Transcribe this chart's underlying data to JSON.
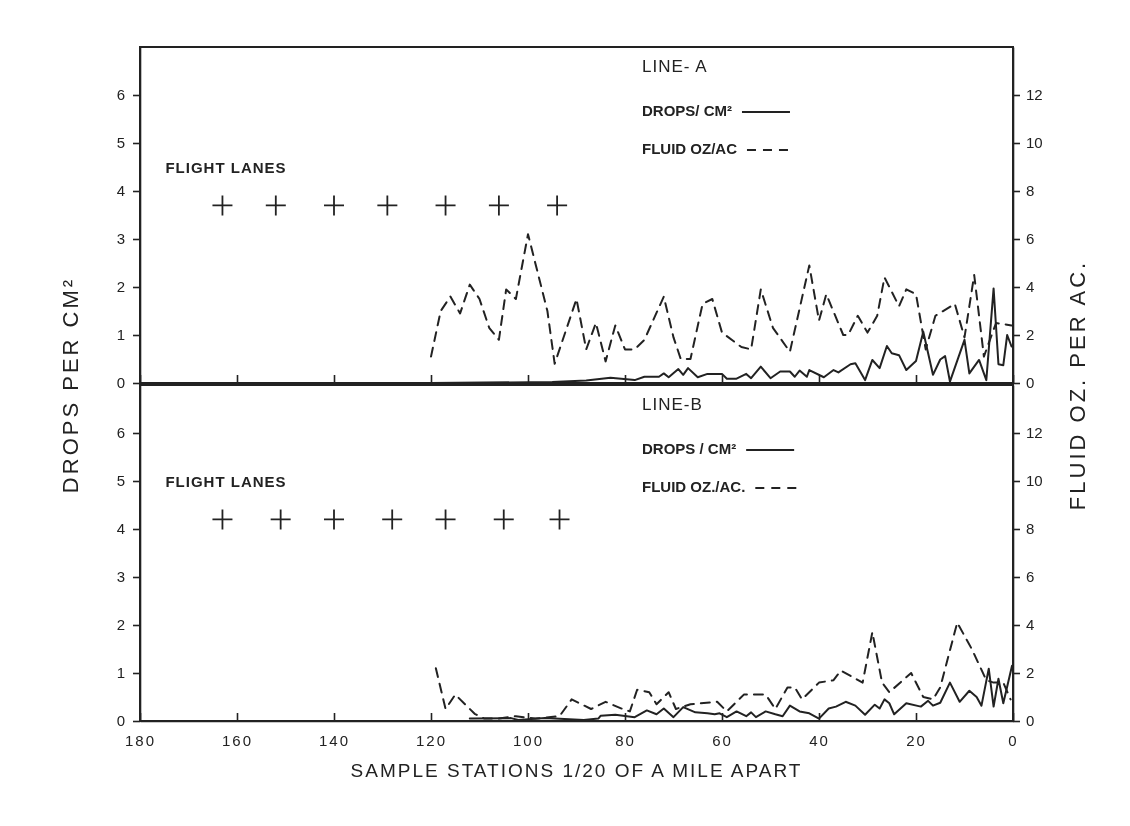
{
  "chart_data": [
    {
      "type": "line",
      "legend_title": "LINE- A",
      "ylabel": "DROPS PER CM²",
      "y2label": "FLUID OZ. PER AC.",
      "xlim": [
        180,
        0
      ],
      "xticks": [
        180,
        160,
        140,
        120,
        100,
        80,
        60,
        40,
        20,
        0
      ],
      "ylim": [
        0,
        7
      ],
      "yticks": [
        0,
        1,
        2,
        3,
        4,
        5,
        6
      ],
      "y2lim": [
        0,
        14
      ],
      "y2ticks": [
        0,
        2,
        4,
        6,
        8,
        10,
        12
      ],
      "tick_labels": "y",
      "legend": "top right",
      "series": [
        {
          "name": "DROPS/ CM²",
          "color": "#222222",
          "line_style": "solid",
          "x": [
            120,
            95,
            88,
            83,
            78,
            76,
            73,
            72,
            71,
            69,
            68,
            67,
            65,
            63,
            60,
            59,
            57,
            55,
            54,
            52,
            50,
            48,
            46,
            45,
            44,
            42.5,
            42,
            39,
            37,
            36,
            33.5,
            32.5,
            30.5,
            29,
            27.5,
            26,
            25,
            23.5,
            22,
            20,
            18.5,
            17.5,
            16.5,
            15,
            14,
            13,
            10,
            9,
            7,
            5.5,
            4,
            3,
            2,
            1.2,
            0.3
          ],
          "values": [
            0,
            0.02,
            0.05,
            0.11,
            0.06,
            0.13,
            0.13,
            0.2,
            0.12,
            0.29,
            0.17,
            0.31,
            0.12,
            0.19,
            0.19,
            0.09,
            0.09,
            0.19,
            0.1,
            0.34,
            0.1,
            0.24,
            0.24,
            0.13,
            0.26,
            0.13,
            0.27,
            0.12,
            0.27,
            0.22,
            0.39,
            0.41,
            0.06,
            0.48,
            0.31,
            0.77,
            0.62,
            0.58,
            0.27,
            0.46,
            1.07,
            0.62,
            0.17,
            0.49,
            0.56,
            0.03,
            0.9,
            0.2,
            0.48,
            0.06,
            1.97,
            0.39,
            0.37,
            1.0,
            0.76
          ]
        },
        {
          "name": "FLUID OZ/AC",
          "color": "#222222",
          "axis": "y2",
          "line_style": "dashed",
          "x": [
            120,
            118,
            116,
            114,
            112,
            110,
            108,
            106,
            104.5,
            102.5,
            100,
            96,
            94.5,
            90,
            88,
            86,
            84,
            82,
            80,
            78,
            76,
            72,
            70,
            68.5,
            66.5,
            64,
            62,
            60,
            56,
            54,
            52,
            49.5,
            46,
            42,
            40,
            38.5,
            35,
            34,
            32,
            30,
            28,
            26.5,
            23.5,
            22,
            20,
            18,
            16,
            12,
            10,
            8,
            6,
            3.5,
            0.3
          ],
          "values": [
            1.1,
            3.0,
            3.6,
            2.9,
            4.1,
            3.5,
            2.3,
            1.8,
            3.9,
            3.5,
            6.2,
            3.0,
            0.8,
            3.5,
            1.4,
            2.5,
            0.9,
            2.4,
            1.4,
            1.4,
            1.8,
            3.6,
            1.9,
            1.0,
            1.0,
            3.3,
            3.5,
            2.1,
            1.5,
            1.4,
            3.9,
            2.3,
            1.3,
            4.9,
            2.6,
            3.7,
            2.0,
            2.0,
            2.8,
            2.1,
            2.8,
            4.4,
            3.2,
            3.9,
            3.7,
            1.4,
            2.8,
            3.3,
            1.9,
            4.5,
            1.1,
            2.5,
            2.4
          ]
        },
        {
          "name": "FLIGHT LANES",
          "type": "scatter",
          "color": "#222222",
          "marker": "cross",
          "x": [
            163,
            152,
            140,
            129,
            117,
            106,
            94
          ],
          "values": [
            3.7,
            3.7,
            3.7,
            3.7,
            3.7,
            3.7,
            3.7
          ]
        }
      ]
    },
    {
      "type": "line",
      "legend_title": "LINE-B",
      "xlabel": "SAMPLE STATIONS  1/20  OF A MILE APART",
      "xlim": [
        180,
        0
      ],
      "xticks": [
        180,
        160,
        140,
        120,
        100,
        80,
        60,
        40,
        20,
        0
      ],
      "ylim": [
        0,
        7
      ],
      "yticks": [
        0,
        1,
        2,
        3,
        4,
        5,
        6
      ],
      "y2lim": [
        0,
        14
      ],
      "y2ticks": [
        0,
        2,
        4,
        6,
        8,
        10,
        12
      ],
      "legend": "top right",
      "series": [
        {
          "name": "DROPS / CM²",
          "color": "#222222",
          "line_style": "solid",
          "x": [
            112,
            103.5,
            102,
            96.5,
            88.5,
            85.5,
            85,
            82,
            78,
            75.5,
            73.5,
            72,
            70,
            68,
            65.5,
            63,
            61.5,
            60.5,
            59,
            57,
            55,
            54,
            53,
            51,
            49,
            47.5,
            46,
            44,
            42,
            40,
            38,
            36.5,
            34.5,
            32.5,
            30.5,
            28.5,
            27.5,
            26.5,
            25.5,
            24.5,
            22,
            19,
            17.5,
            16.5,
            15,
            13,
            11,
            9,
            7.5,
            6.5,
            5,
            4,
            3,
            2,
            0.2
          ],
          "values": [
            0.05,
            0.06,
            0.02,
            0.06,
            0.02,
            0.05,
            0.11,
            0.13,
            0.08,
            0.22,
            0.14,
            0.26,
            0.08,
            0.29,
            0.18,
            0.16,
            0.14,
            0.16,
            0.08,
            0.2,
            0.1,
            0.18,
            0.08,
            0.2,
            0.14,
            0.1,
            0.32,
            0.2,
            0.16,
            0.05,
            0.26,
            0.3,
            0.4,
            0.32,
            0.13,
            0.34,
            0.26,
            0.45,
            0.37,
            0.14,
            0.37,
            0.3,
            0.42,
            0.32,
            0.38,
            0.8,
            0.4,
            0.63,
            0.5,
            0.32,
            1.09,
            0.3,
            0.88,
            0.37,
            1.15
          ]
        },
        {
          "name": "FLUID OZ./AC.",
          "color": "#222222",
          "axis": "y2",
          "line_style": "dashed",
          "x": [
            119,
            117,
            115,
            111,
            109,
            106,
            102.5,
            98.5,
            93.5,
            91,
            87,
            84,
            80.5,
            79,
            77.5,
            75,
            73.5,
            71,
            69.5,
            66.5,
            61,
            59,
            55.5,
            51,
            49,
            46.5,
            45,
            43.5,
            40,
            37,
            35.5,
            31,
            29,
            27,
            25.5,
            21,
            18.5,
            16.5,
            15,
            11.5,
            8.5,
            5.5,
            4,
            2,
            0.5
          ],
          "values": [
            2.2,
            0.5,
            1.1,
            0.3,
            0.1,
            0.1,
            0.2,
            0.1,
            0.2,
            0.9,
            0.5,
            0.8,
            0.5,
            0.4,
            1.3,
            1.2,
            0.7,
            1.2,
            0.5,
            0.7,
            0.8,
            0.4,
            1.1,
            1.1,
            0.5,
            1.4,
            1.4,
            0.9,
            1.6,
            1.7,
            2.1,
            1.6,
            3.7,
            1.6,
            1.2,
            2.0,
            1.0,
            0.9,
            1.4,
            4.1,
            3.0,
            1.7,
            1.6,
            1.6,
            0.9
          ]
        },
        {
          "name": "FLIGHT LANES",
          "type": "scatter",
          "color": "#222222",
          "marker": "cross",
          "x": [
            163,
            151,
            140,
            128,
            117,
            105,
            93.5
          ],
          "values": [
            4.2,
            4.2,
            4.2,
            4.2,
            4.2,
            4.2,
            4.2
          ]
        }
      ]
    }
  ]
}
